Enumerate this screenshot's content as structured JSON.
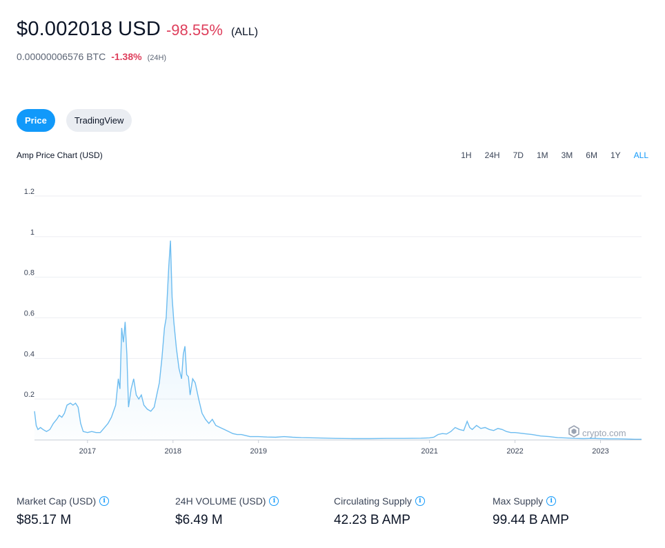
{
  "header": {
    "price": "$0.002018 USD",
    "change": "-98.55%",
    "change_period": "(ALL)",
    "btc_value": "0.00000006576 BTC",
    "btc_change": "-1.38%",
    "btc_period": "(24H)"
  },
  "view_tabs": [
    {
      "label": "Price",
      "active": true
    },
    {
      "label": "TradingView",
      "active": false
    }
  ],
  "chart_header": {
    "title": "Amp Price Chart (USD)",
    "ranges": [
      "1H",
      "24H",
      "7D",
      "1M",
      "3M",
      "6M",
      "1Y",
      "ALL"
    ],
    "active_range": "ALL"
  },
  "watermark": "crypto.com",
  "colors": {
    "accent": "#1199fa",
    "negative": "#de3e5b",
    "line": "#6cbcf0"
  },
  "chart_data": {
    "type": "area",
    "title": "",
    "xlabel": "",
    "ylabel": "",
    "ylim": [
      0,
      1.2
    ],
    "yticks": [
      "0.2",
      "0.4",
      "0.6",
      "0.8",
      "1",
      "1.2"
    ],
    "xticks": [
      {
        "label": "2017",
        "t": 2017.0
      },
      {
        "label": "2018",
        "t": 2018.0
      },
      {
        "label": "2019",
        "t": 2019.0
      },
      {
        "label": "2021",
        "t": 2021.0
      },
      {
        "label": "2022",
        "t": 2022.0
      },
      {
        "label": "2023",
        "t": 2023.0
      }
    ],
    "grid": true,
    "series": [
      {
        "values": [
          [
            2016.38,
            0.14
          ],
          [
            2016.4,
            0.07
          ],
          [
            2016.42,
            0.05
          ],
          [
            2016.45,
            0.06
          ],
          [
            2016.48,
            0.05
          ],
          [
            2016.52,
            0.04
          ],
          [
            2016.56,
            0.05
          ],
          [
            2016.6,
            0.08
          ],
          [
            2016.64,
            0.1
          ],
          [
            2016.67,
            0.12
          ],
          [
            2016.7,
            0.11
          ],
          [
            2016.73,
            0.13
          ],
          [
            2016.76,
            0.17
          ],
          [
            2016.8,
            0.18
          ],
          [
            2016.83,
            0.17
          ],
          [
            2016.86,
            0.18
          ],
          [
            2016.89,
            0.16
          ],
          [
            2016.92,
            0.08
          ],
          [
            2016.95,
            0.04
          ],
          [
            2017.0,
            0.035
          ],
          [
            2017.05,
            0.04
          ],
          [
            2017.1,
            0.035
          ],
          [
            2017.15,
            0.035
          ],
          [
            2017.2,
            0.06
          ],
          [
            2017.24,
            0.08
          ],
          [
            2017.28,
            0.11
          ],
          [
            2017.33,
            0.17
          ],
          [
            2017.36,
            0.3
          ],
          [
            2017.38,
            0.25
          ],
          [
            2017.4,
            0.55
          ],
          [
            2017.42,
            0.48
          ],
          [
            2017.44,
            0.58
          ],
          [
            2017.46,
            0.42
          ],
          [
            2017.48,
            0.16
          ],
          [
            2017.51,
            0.25
          ],
          [
            2017.54,
            0.3
          ],
          [
            2017.57,
            0.22
          ],
          [
            2017.6,
            0.2
          ],
          [
            2017.63,
            0.22
          ],
          [
            2017.66,
            0.17
          ],
          [
            2017.7,
            0.15
          ],
          [
            2017.74,
            0.14
          ],
          [
            2017.78,
            0.16
          ],
          [
            2017.81,
            0.22
          ],
          [
            2017.84,
            0.28
          ],
          [
            2017.87,
            0.4
          ],
          [
            2017.9,
            0.55
          ],
          [
            2017.92,
            0.6
          ],
          [
            2017.95,
            0.85
          ],
          [
            2017.97,
            0.98
          ],
          [
            2017.99,
            0.7
          ],
          [
            2018.01,
            0.58
          ],
          [
            2018.04,
            0.45
          ],
          [
            2018.07,
            0.35
          ],
          [
            2018.1,
            0.3
          ],
          [
            2018.12,
            0.42
          ],
          [
            2018.14,
            0.46
          ],
          [
            2018.16,
            0.32
          ],
          [
            2018.18,
            0.31
          ],
          [
            2018.2,
            0.22
          ],
          [
            2018.23,
            0.3
          ],
          [
            2018.26,
            0.28
          ],
          [
            2018.3,
            0.2
          ],
          [
            2018.34,
            0.13
          ],
          [
            2018.38,
            0.1
          ],
          [
            2018.42,
            0.08
          ],
          [
            2018.46,
            0.1
          ],
          [
            2018.5,
            0.07
          ],
          [
            2018.55,
            0.06
          ],
          [
            2018.6,
            0.05
          ],
          [
            2018.65,
            0.04
          ],
          [
            2018.7,
            0.03
          ],
          [
            2018.75,
            0.025
          ],
          [
            2018.8,
            0.025
          ],
          [
            2018.85,
            0.02
          ],
          [
            2018.9,
            0.015
          ],
          [
            2019.0,
            0.015
          ],
          [
            2019.1,
            0.013
          ],
          [
            2019.2,
            0.012
          ],
          [
            2019.3,
            0.015
          ],
          [
            2019.4,
            0.012
          ],
          [
            2019.5,
            0.01
          ],
          [
            2019.7,
            0.008
          ],
          [
            2019.9,
            0.006
          ],
          [
            2020.1,
            0.005
          ],
          [
            2020.3,
            0.005
          ],
          [
            2020.5,
            0.006
          ],
          [
            2020.7,
            0.006
          ],
          [
            2020.9,
            0.007
          ],
          [
            2021.0,
            0.009
          ],
          [
            2021.05,
            0.012
          ],
          [
            2021.1,
            0.025
          ],
          [
            2021.15,
            0.03
          ],
          [
            2021.2,
            0.028
          ],
          [
            2021.25,
            0.04
          ],
          [
            2021.3,
            0.06
          ],
          [
            2021.35,
            0.05
          ],
          [
            2021.4,
            0.045
          ],
          [
            2021.44,
            0.09
          ],
          [
            2021.47,
            0.06
          ],
          [
            2021.5,
            0.05
          ],
          [
            2021.55,
            0.07
          ],
          [
            2021.6,
            0.055
          ],
          [
            2021.65,
            0.06
          ],
          [
            2021.7,
            0.05
          ],
          [
            2021.75,
            0.045
          ],
          [
            2021.8,
            0.055
          ],
          [
            2021.85,
            0.05
          ],
          [
            2021.9,
            0.04
          ],
          [
            2021.95,
            0.035
          ],
          [
            2022.0,
            0.035
          ],
          [
            2022.1,
            0.03
          ],
          [
            2022.2,
            0.025
          ],
          [
            2022.3,
            0.018
          ],
          [
            2022.4,
            0.015
          ],
          [
            2022.5,
            0.01
          ],
          [
            2022.6,
            0.008
          ],
          [
            2022.7,
            0.006
          ],
          [
            2022.8,
            0.005
          ],
          [
            2022.9,
            0.006
          ],
          [
            2023.0,
            0.005
          ],
          [
            2023.1,
            0.004
          ],
          [
            2023.2,
            0.004
          ],
          [
            2023.3,
            0.003
          ],
          [
            2023.4,
            0.002
          ],
          [
            2023.48,
            0.002
          ]
        ]
      }
    ]
  },
  "stats": [
    {
      "label": "Market Cap (USD)",
      "value": "$85.17 M"
    },
    {
      "label": "24H VOLUME (USD)",
      "value": "$6.49 M"
    },
    {
      "label": "Circulating Supply",
      "value": "42.23 B AMP"
    },
    {
      "label": "Max Supply",
      "value": "99.44 B AMP"
    }
  ]
}
